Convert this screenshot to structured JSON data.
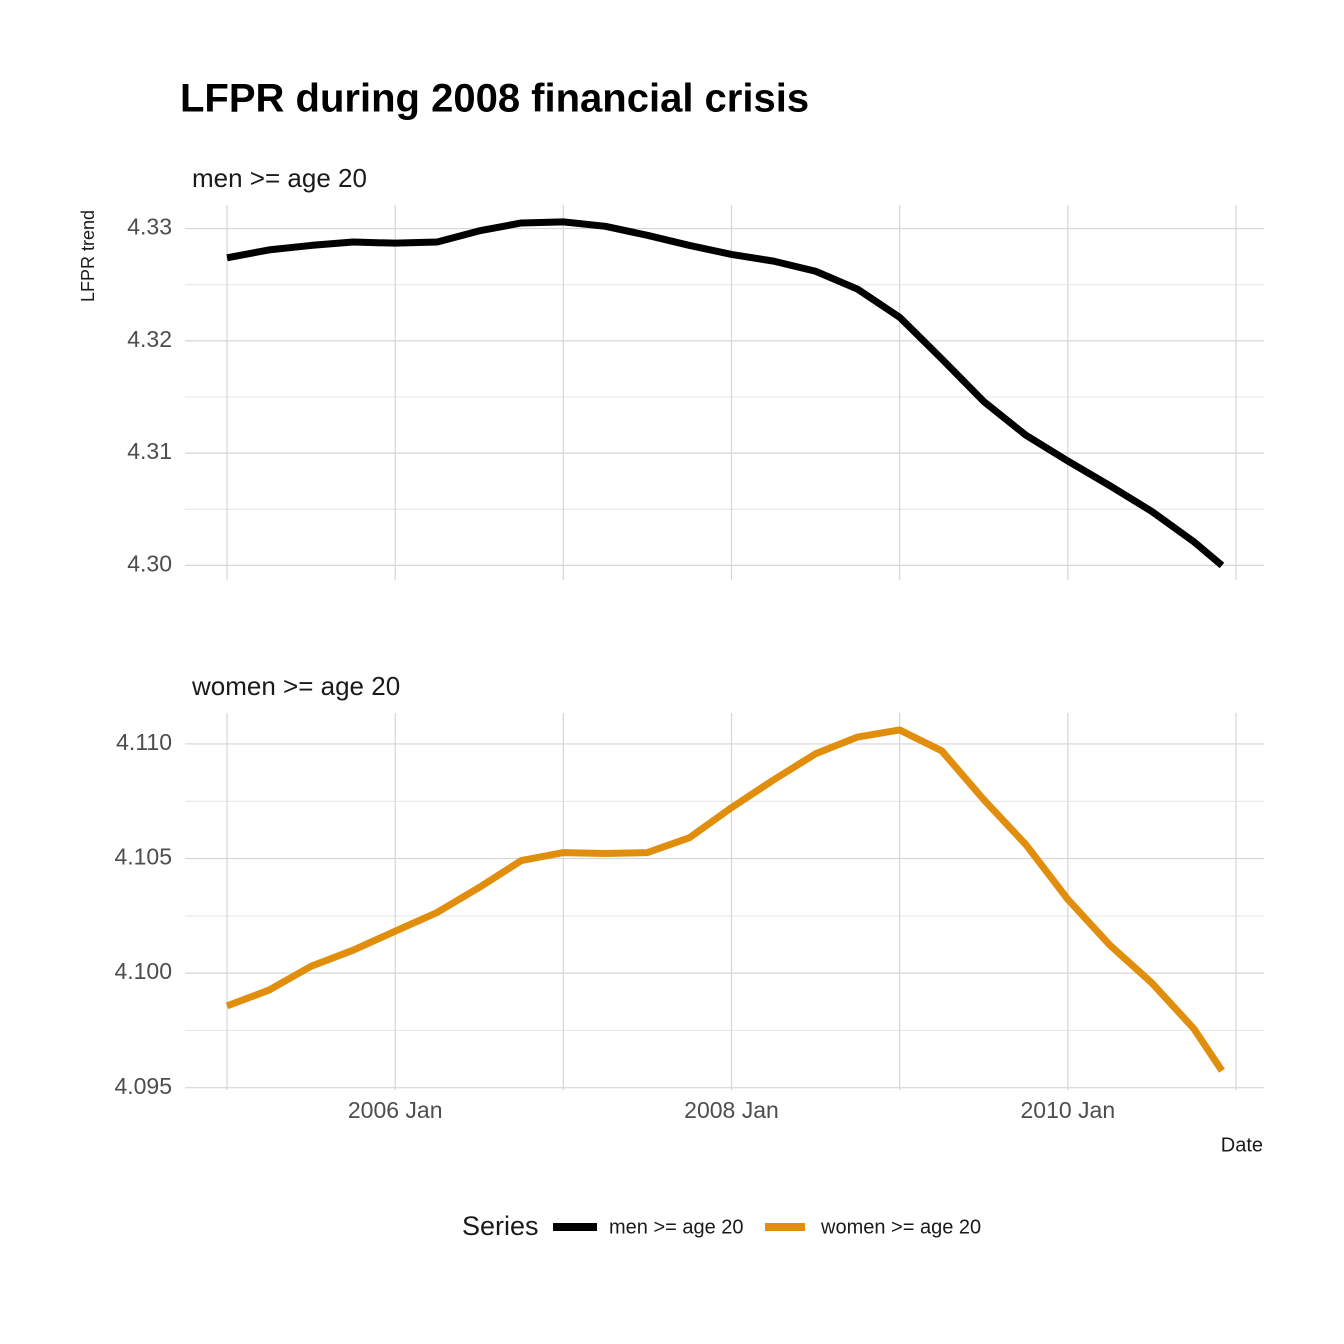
{
  "title": "LFPR during 2008 financial crisis",
  "y_label": "LFPR trend",
  "x_label": "Date",
  "legend_title": "Series",
  "chart_data": [
    {
      "type": "line",
      "subtitle": "men >= age 20",
      "x": [
        "2005-01",
        "2005-04",
        "2005-07",
        "2005-10",
        "2006-01",
        "2006-04",
        "2006-07",
        "2006-10",
        "2007-01",
        "2007-04",
        "2007-07",
        "2007-10",
        "2008-01",
        "2008-04",
        "2008-07",
        "2008-10",
        "2009-01",
        "2009-04",
        "2009-07",
        "2009-10",
        "2010-01",
        "2010-04",
        "2010-07",
        "2010-10",
        "2010-12"
      ],
      "series": [
        {
          "name": "men >= age 20",
          "color": "#000000",
          "values": [
            4.3274,
            4.3281,
            4.3285,
            4.3288,
            4.3287,
            4.3288,
            4.3298,
            4.3305,
            4.3306,
            4.3302,
            4.3294,
            4.3285,
            4.3277,
            4.3271,
            4.3262,
            4.3246,
            4.3221,
            4.3184,
            4.3146,
            4.3116,
            4.3093,
            4.3071,
            4.3048,
            4.3021,
            4.3
          ]
        }
      ],
      "xlim": [
        "2004-10",
        "2011-03"
      ],
      "xticks": [],
      "x_minor_ticks": [
        "2005-01",
        "2006-01",
        "2007-01",
        "2008-01",
        "2009-01",
        "2010-01",
        "2011-01"
      ],
      "ylim": [
        4.2987,
        4.3321
      ],
      "yticks": [
        {
          "value": 4.3,
          "label": "4.30"
        },
        4.31,
        4.32,
        4.33
      ],
      "y_minor_ticks": [
        4.305,
        4.315,
        4.325
      ],
      "grid": true
    },
    {
      "type": "line",
      "subtitle": "women >= age 20",
      "x": [
        "2005-01",
        "2005-04",
        "2005-07",
        "2005-10",
        "2006-01",
        "2006-04",
        "2006-07",
        "2006-10",
        "2007-01",
        "2007-04",
        "2007-07",
        "2007-10",
        "2008-01",
        "2008-04",
        "2008-07",
        "2008-10",
        "2009-01",
        "2009-04",
        "2009-07",
        "2009-10",
        "2010-01",
        "2010-04",
        "2010-07",
        "2010-10",
        "2010-12"
      ],
      "series": [
        {
          "name": "women >= age 20",
          "color": "#e08e0b",
          "values": [
            4.09857,
            4.09926,
            4.1003,
            4.101,
            4.10183,
            4.10265,
            4.10374,
            4.10491,
            4.10526,
            4.10522,
            4.10526,
            4.10591,
            4.10722,
            4.10843,
            4.10957,
            4.1103,
            4.11061,
            4.1097,
            4.10757,
            4.10561,
            4.10322,
            4.10122,
            4.09957,
            4.09757,
            4.09574
          ]
        }
      ],
      "xlim": [
        "2004-10",
        "2011-03"
      ],
      "xticks": [
        {
          "value": "2006-01",
          "label": "2006 Jan"
        },
        {
          "value": "2008-01",
          "label": "2008 Jan"
        },
        {
          "value": "2010-01",
          "label": "2010 Jan"
        }
      ],
      "x_minor_ticks": [
        "2005-01",
        "2007-01",
        "2009-01",
        "2011-01"
      ],
      "ylim": [
        4.0949,
        4.11135
      ],
      "yticks": [
        4.095,
        {
          "value": 4.1,
          "label": "4.100"
        },
        4.105,
        {
          "value": 4.11,
          "label": "4.110"
        }
      ],
      "y_minor_ticks": [
        4.0975,
        4.1025,
        4.1075
      ],
      "grid": true
    }
  ]
}
